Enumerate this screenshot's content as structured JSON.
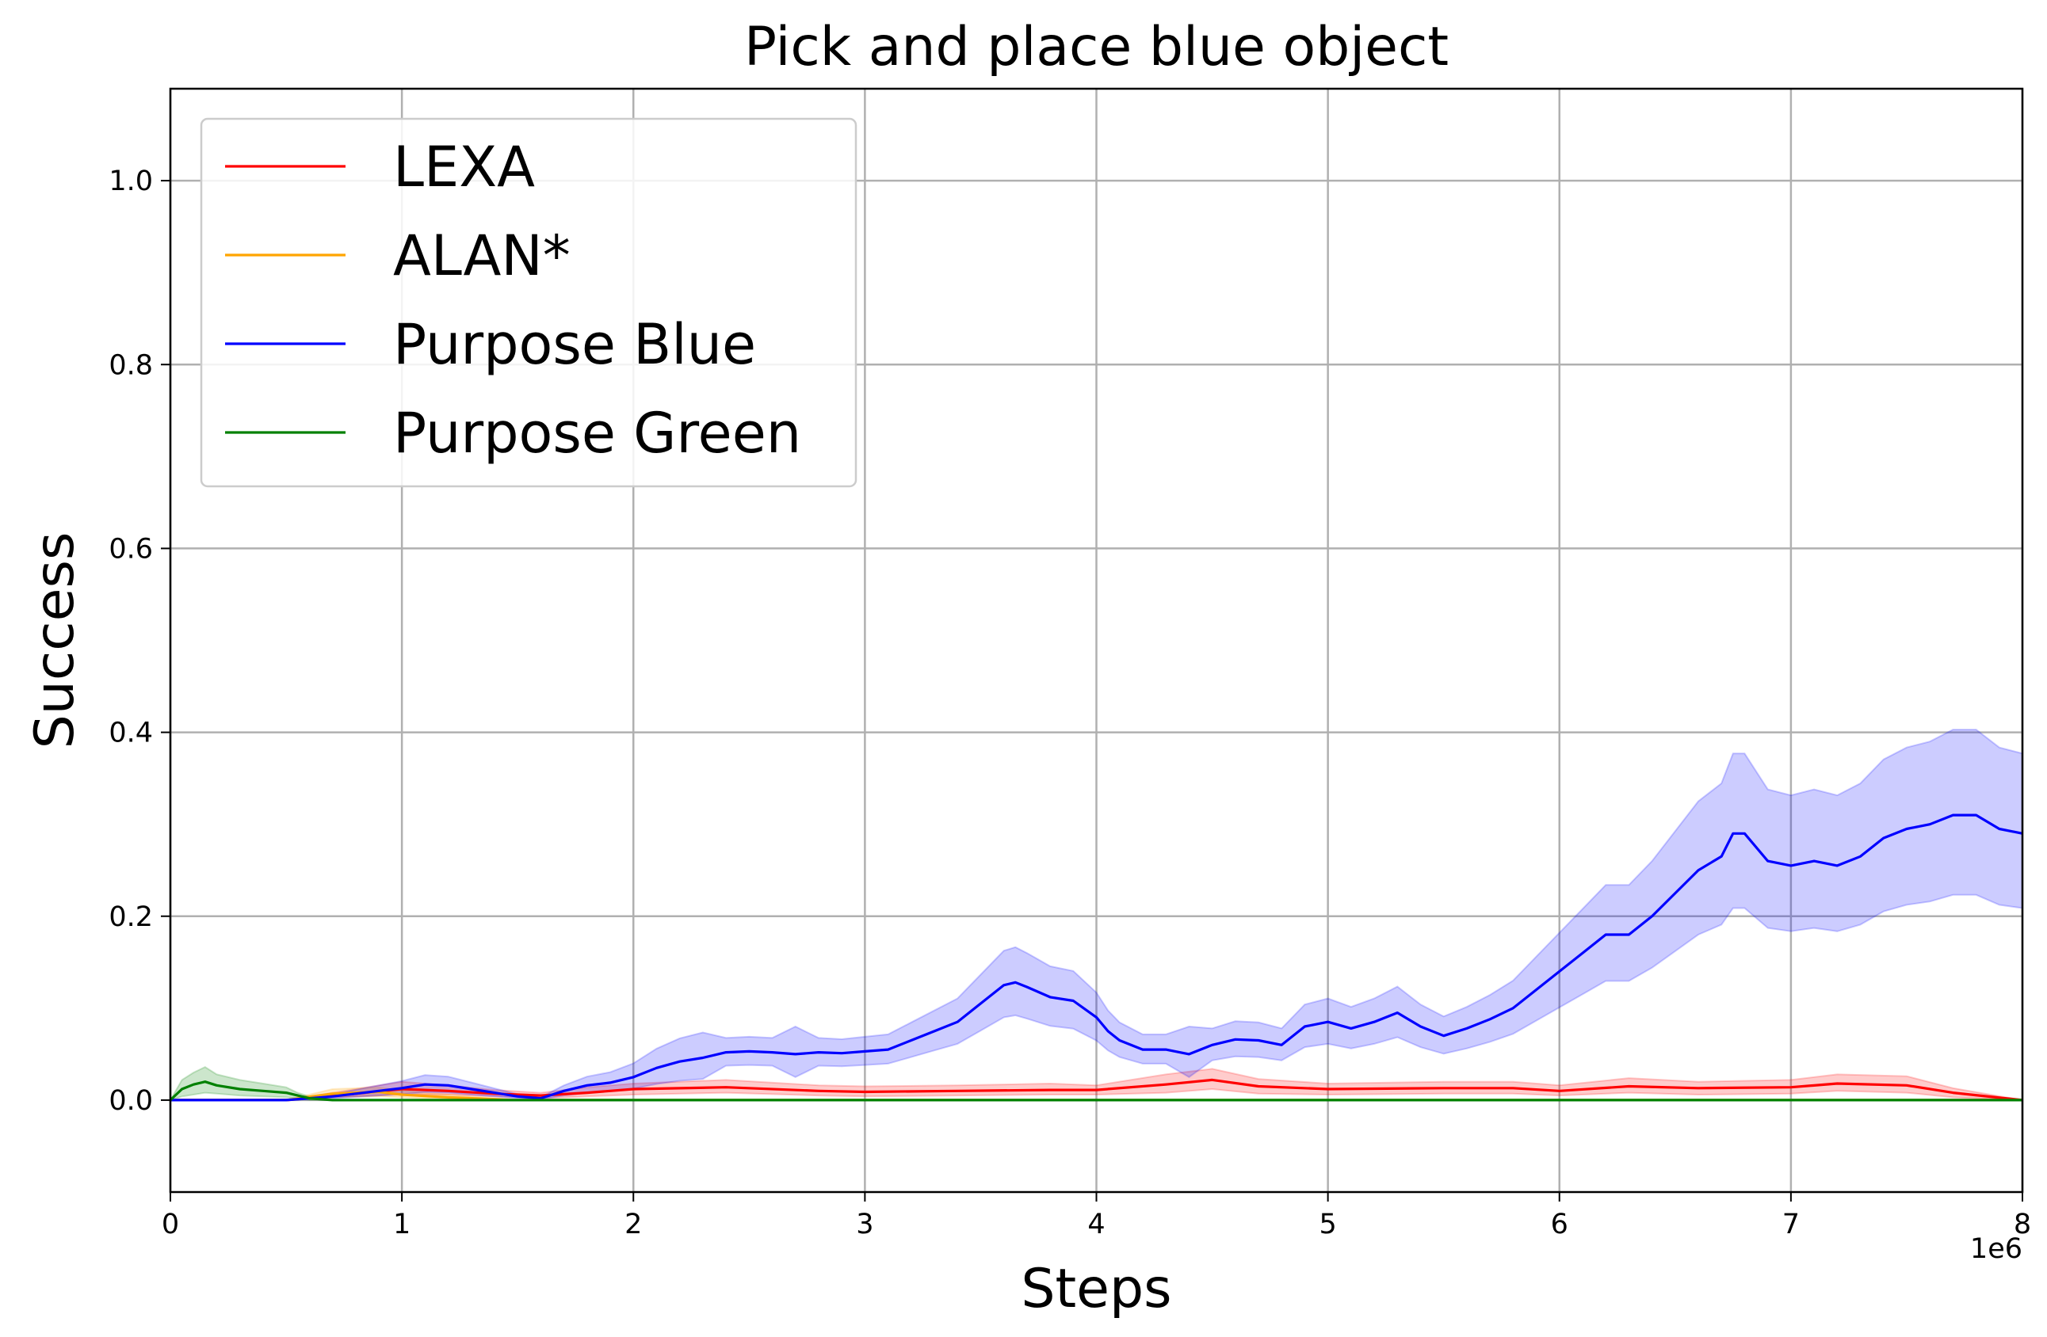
{
  "chart_data": {
    "type": "line",
    "title": "Pick and place blue object",
    "xlabel": "Steps",
    "ylabel": "Success",
    "x_scale_label": "1e6",
    "xlim": [
      0,
      8
    ],
    "ylim": [
      -0.1,
      1.1
    ],
    "x_ticks": [
      0,
      1,
      2,
      3,
      4,
      5,
      6,
      7,
      8
    ],
    "x_tick_labels": [
      "0",
      "1",
      "2",
      "3",
      "4",
      "5",
      "6",
      "7",
      "8"
    ],
    "y_ticks": [
      0.0,
      0.2,
      0.4,
      0.6,
      0.8,
      1.0
    ],
    "y_tick_labels": [
      "0.0",
      "0.2",
      "0.4",
      "0.6",
      "0.8",
      "1.0"
    ],
    "grid": true,
    "legend_position": "top-left",
    "series": [
      {
        "name": "LEXA",
        "color": "#ff0000",
        "x": [
          0,
          0.5,
          0.8,
          1.0,
          1.2,
          1.4,
          1.6,
          1.8,
          2.0,
          2.4,
          2.8,
          3.0,
          3.4,
          3.8,
          4.0,
          4.3,
          4.5,
          4.7,
          5.0,
          5.5,
          5.8,
          6.0,
          6.3,
          6.6,
          7.0,
          7.2,
          7.5,
          7.7,
          8.0
        ],
        "y": [
          0,
          0.0,
          0.007,
          0.012,
          0.01,
          0.007,
          0.005,
          0.008,
          0.012,
          0.014,
          0.01,
          0.009,
          0.01,
          0.011,
          0.011,
          0.017,
          0.022,
          0.015,
          0.012,
          0.013,
          0.013,
          0.01,
          0.015,
          0.013,
          0.014,
          0.018,
          0.016,
          0.008,
          0.0
        ],
        "lower": [
          0,
          0.0,
          0.004,
          0.006,
          0.006,
          0.004,
          0.002,
          0.004,
          0.006,
          0.008,
          0.005,
          0.004,
          0.005,
          0.006,
          0.006,
          0.008,
          0.012,
          0.007,
          0.006,
          0.007,
          0.007,
          0.005,
          0.008,
          0.006,
          0.007,
          0.01,
          0.008,
          0.003,
          0.0
        ],
        "upper": [
          0,
          0.0,
          0.012,
          0.02,
          0.016,
          0.011,
          0.008,
          0.014,
          0.018,
          0.022,
          0.016,
          0.015,
          0.016,
          0.018,
          0.016,
          0.028,
          0.034,
          0.023,
          0.018,
          0.02,
          0.02,
          0.016,
          0.024,
          0.02,
          0.022,
          0.028,
          0.026,
          0.013,
          0.0
        ]
      },
      {
        "name": "ALAN*",
        "color": "#ffa500",
        "x": [
          0,
          0.5,
          0.7,
          0.9,
          1.0,
          1.2,
          1.5,
          8.0
        ],
        "y": [
          0,
          0.0,
          0.007,
          0.009,
          0.006,
          0.003,
          0.0,
          0.0
        ],
        "lower": [
          0,
          0.0,
          0.003,
          0.004,
          0.003,
          0.001,
          0.0,
          0.0
        ],
        "upper": [
          0,
          0.0,
          0.012,
          0.014,
          0.01,
          0.006,
          0.0,
          0.0
        ]
      },
      {
        "name": "Purpose Blue",
        "color": "#0000ff",
        "x": [
          0,
          0.5,
          0.7,
          0.9,
          1.0,
          1.1,
          1.2,
          1.3,
          1.4,
          1.5,
          1.6,
          1.7,
          1.8,
          1.9,
          2.0,
          2.1,
          2.2,
          2.3,
          2.4,
          2.5,
          2.6,
          2.7,
          2.8,
          2.9,
          3.0,
          3.1,
          3.2,
          3.3,
          3.4,
          3.5,
          3.6,
          3.65,
          3.7,
          3.8,
          3.9,
          4.0,
          4.05,
          4.1,
          4.2,
          4.3,
          4.4,
          4.5,
          4.6,
          4.7,
          4.8,
          4.9,
          5.0,
          5.1,
          5.2,
          5.3,
          5.4,
          5.5,
          5.6,
          5.7,
          5.8,
          5.9,
          6.0,
          6.1,
          6.2,
          6.3,
          6.4,
          6.5,
          6.6,
          6.7,
          6.75,
          6.8,
          6.9,
          7.0,
          7.1,
          7.2,
          7.3,
          7.4,
          7.5,
          7.6,
          7.7,
          7.8,
          7.9,
          8.0
        ],
        "y": [
          0,
          0.0,
          0.004,
          0.01,
          0.013,
          0.017,
          0.016,
          0.012,
          0.008,
          0.004,
          0.002,
          0.01,
          0.016,
          0.019,
          0.025,
          0.035,
          0.042,
          0.046,
          0.052,
          0.053,
          0.052,
          0.05,
          0.052,
          0.051,
          0.053,
          0.055,
          0.065,
          0.075,
          0.085,
          0.105,
          0.125,
          0.128,
          0.123,
          0.112,
          0.108,
          0.09,
          0.075,
          0.065,
          0.055,
          0.055,
          0.05,
          0.06,
          0.066,
          0.065,
          0.06,
          0.08,
          0.085,
          0.078,
          0.085,
          0.095,
          0.08,
          0.07,
          0.078,
          0.088,
          0.1,
          0.12,
          0.14,
          0.16,
          0.18,
          0.18,
          0.2,
          0.225,
          0.25,
          0.265,
          0.29,
          0.29,
          0.26,
          0.255,
          0.26,
          0.255,
          0.265,
          0.285,
          0.295,
          0.3,
          0.31,
          0.31,
          0.295,
          0.29
        ]
      },
      {
        "name": "Purpose Green",
        "color": "#008000",
        "x": [
          0,
          0.05,
          0.1,
          0.15,
          0.2,
          0.3,
          0.4,
          0.5,
          0.55,
          0.6,
          0.7,
          8.0
        ],
        "y": [
          0,
          0.012,
          0.017,
          0.02,
          0.016,
          0.012,
          0.01,
          0.008,
          0.005,
          0.002,
          0.0,
          0.0
        ],
        "lower": [
          0,
          0.004,
          0.006,
          0.008,
          0.007,
          0.005,
          0.004,
          0.003,
          0.002,
          0.0,
          0.0,
          0.0
        ],
        "upper": [
          0,
          0.022,
          0.03,
          0.036,
          0.028,
          0.022,
          0.018,
          0.014,
          0.008,
          0.004,
          0.0,
          0.0
        ]
      }
    ]
  }
}
